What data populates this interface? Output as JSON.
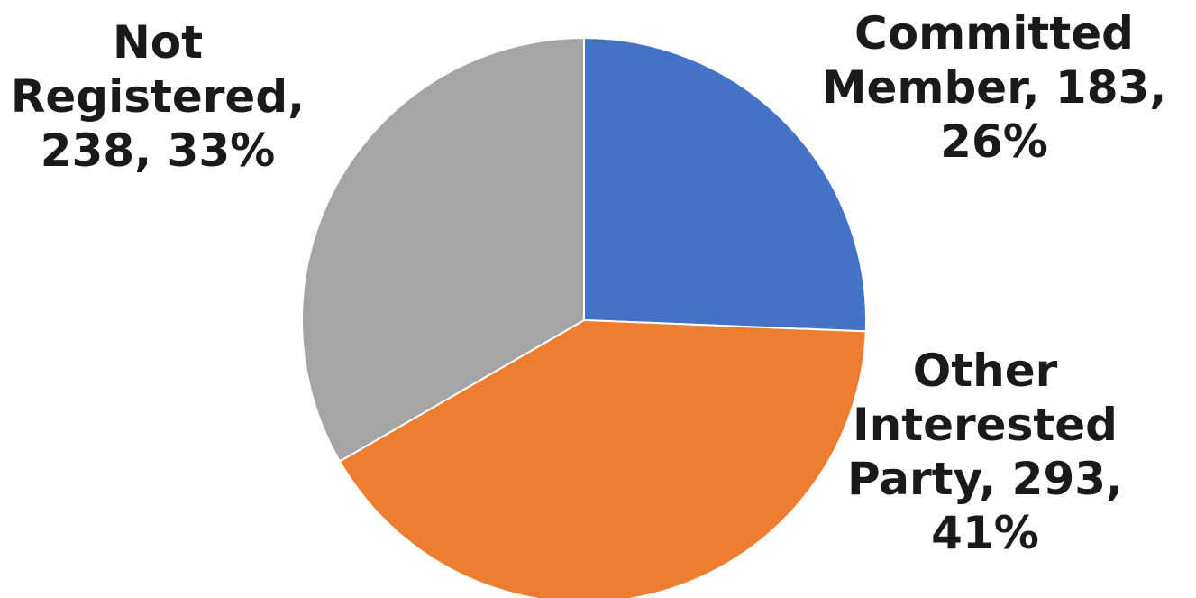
{
  "chart_data": {
    "type": "pie",
    "start_angle_deg": 0,
    "direction": "clockwise",
    "legend": "none",
    "slices": [
      {
        "category": "Committed Member",
        "value": 183,
        "percent": "26%",
        "color": "#4472c4",
        "label_lines": [
          "Committed",
          "Member, 183,",
          "26%"
        ]
      },
      {
        "category": "Other Interested Party",
        "value": 293,
        "percent": "41%",
        "color": "#ed7d31",
        "label_lines": [
          "Other",
          "Interested",
          "Party, 293,",
          "41%"
        ]
      },
      {
        "category": "Not Registered",
        "value": 238,
        "percent": "33%",
        "color": "#a5a5a5",
        "label_lines": [
          "Not",
          "Registered,",
          "238, 33%"
        ]
      }
    ]
  }
}
